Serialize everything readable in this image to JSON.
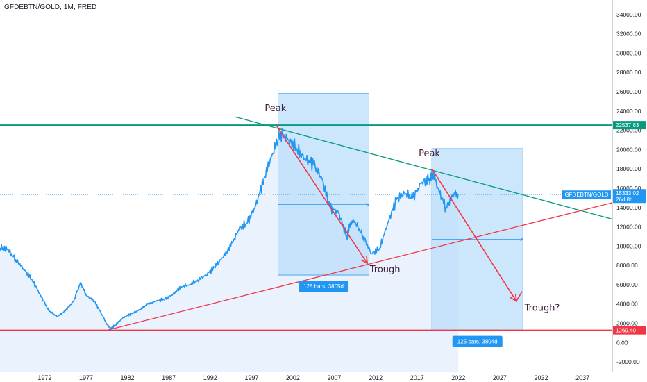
{
  "header": {
    "symbol_title": "GFDEBTN/GOLD, 1M, FRED"
  },
  "colors": {
    "price_line": "#2196f3",
    "price_fill": "#eaf3fd",
    "teal": "#089981",
    "red": "#f23645",
    "range_fill": "#bbdefb",
    "range_stroke": "#2196f3",
    "badge": "#2196f3",
    "price_label_bg": "#2196f3"
  },
  "chart_data": {
    "type": "line",
    "series": [
      {
        "name": "GFDEBTN/GOLD",
        "points": [
          [
            1966.6,
            9800
          ],
          [
            1967.5,
            9700
          ],
          [
            1968.5,
            8600
          ],
          [
            1969.5,
            7600
          ],
          [
            1970.5,
            6500
          ],
          [
            1971.5,
            4900
          ],
          [
            1972.5,
            3300
          ],
          [
            1973.5,
            2700
          ],
          [
            1974.5,
            3300
          ],
          [
            1975.5,
            4300
          ],
          [
            1976.3,
            6200
          ],
          [
            1977.0,
            4900
          ],
          [
            1978.0,
            4300
          ],
          [
            1979.0,
            2800
          ],
          [
            1979.5,
            1900
          ],
          [
            1980.0,
            1500
          ],
          [
            1980.5,
            1800
          ],
          [
            1981.5,
            2600
          ],
          [
            1982.5,
            3000
          ],
          [
            1983.5,
            3400
          ],
          [
            1984.5,
            4000
          ],
          [
            1985.5,
            4300
          ],
          [
            1986.5,
            4500
          ],
          [
            1987.5,
            5000
          ],
          [
            1988.5,
            5800
          ],
          [
            1989.5,
            6000
          ],
          [
            1990.5,
            6500
          ],
          [
            1991.5,
            7000
          ],
          [
            1992.5,
            7800
          ],
          [
            1993.5,
            8800
          ],
          [
            1994.5,
            10000
          ],
          [
            1995.5,
            11800
          ],
          [
            1996.5,
            12400
          ],
          [
            1997.5,
            14200
          ],
          [
            1998.5,
            17000
          ],
          [
            1999.5,
            19500
          ],
          [
            2000.5,
            21800
          ],
          [
            2001.5,
            21000
          ],
          [
            2002.5,
            20000
          ],
          [
            2003.5,
            19000
          ],
          [
            2004.5,
            18500
          ],
          [
            2005.5,
            17000
          ],
          [
            2006.5,
            14000
          ],
          [
            2007.5,
            13500
          ],
          [
            2008.5,
            11000
          ],
          [
            2009.0,
            12500
          ],
          [
            2009.5,
            12500
          ],
          [
            2010.5,
            11000
          ],
          [
            2011.5,
            9200
          ],
          [
            2012.5,
            9800
          ],
          [
            2013.5,
            12500
          ],
          [
            2014.5,
            14800
          ],
          [
            2015.5,
            15500
          ],
          [
            2016.5,
            15000
          ],
          [
            2017.5,
            16500
          ],
          [
            2018.5,
            17000
          ],
          [
            2019.0,
            17500
          ],
          [
            2019.5,
            16000
          ],
          [
            2020.5,
            14000
          ],
          [
            2021.5,
            15500
          ],
          [
            2022.0,
            15333
          ]
        ]
      }
    ],
    "yticks": [
      34000,
      32000,
      30000,
      28000,
      26000,
      24000,
      22000,
      20000,
      18000,
      16000,
      14000,
      12000,
      10000,
      8000,
      6000,
      4000,
      2000,
      0,
      -2000
    ],
    "ytick_labels": [
      "34000.00",
      "32000.00",
      "30000.00",
      "28000.00",
      "26000.00",
      "24000.00",
      "22000.00",
      "20000.00",
      "18000.00",
      "16000.00",
      "14000.00",
      "12000.00",
      "10000.00",
      "8000.00",
      "6000.00",
      "4000.00",
      "2000.00",
      "0.00",
      "-2000.00"
    ],
    "xticks": [
      1972,
      1977,
      1982,
      1987,
      1992,
      1997,
      2002,
      2007,
      2012,
      2017,
      2022,
      2027,
      2032,
      2037
    ],
    "ylim": [
      -3000,
      35500
    ],
    "xlim": [
      1966.6,
      2040.6
    ],
    "grid": false,
    "horizontal_levels": [
      {
        "name": "resistance",
        "value": 22537.83,
        "label": "22537.83",
        "color": "teal"
      },
      {
        "name": "support",
        "value": 1269.4,
        "label": "1269.40",
        "color": "red"
      }
    ],
    "last_price": {
      "value": 15333.02,
      "label": "15333.02",
      "countdown": "26d 8h",
      "series_label": "GFDEBTN/GOLD"
    },
    "trendlines": [
      {
        "name": "teal-trendline",
        "color": "teal",
        "from": [
          1995.0,
          23400
        ],
        "to": [
          2040.6,
          12800
        ]
      },
      {
        "name": "red-trendline",
        "color": "red",
        "from": [
          1979.6,
          1300
        ],
        "to": [
          2040.6,
          14500
        ]
      }
    ],
    "arrows": [
      {
        "name": "first-decline-arrow",
        "color": "red",
        "from": [
          2000.0,
          22500
        ],
        "to": [
          2011.0,
          8200
        ]
      },
      {
        "name": "projected-decline-arrow",
        "color": "red",
        "from": [
          2018.8,
          18000
        ],
        "to": [
          2029.0,
          4300
        ]
      }
    ],
    "hook": {
      "name": "projection-hook",
      "from": [
        2029.0,
        4300
      ],
      "to": [
        2029.7,
        5300
      ]
    },
    "date_ranges": [
      {
        "name": "first-date-range",
        "x0": 2000.2,
        "x1": 2011.2,
        "y0": 7000,
        "y1": 25800,
        "mid": 14300,
        "label": "125 bars, 3805d"
      },
      {
        "name": "second-date-range",
        "x0": 2018.8,
        "x1": 2029.8,
        "y0": 1269,
        "y1": 20100,
        "mid": 10700,
        "label": "125 bars, 3804d"
      }
    ],
    "annotations": [
      {
        "name": "peak-label-1",
        "text": "Peak",
        "x": 1998.6,
        "y": 24000
      },
      {
        "name": "trough-label-1",
        "text": "Trough",
        "x": 2011.3,
        "y": 7300
      },
      {
        "name": "peak-label-2",
        "text": "Peak",
        "x": 2017.2,
        "y": 19300
      },
      {
        "name": "trough-label-2",
        "text": "Trough?",
        "x": 2030.0,
        "y": 3300
      }
    ]
  }
}
